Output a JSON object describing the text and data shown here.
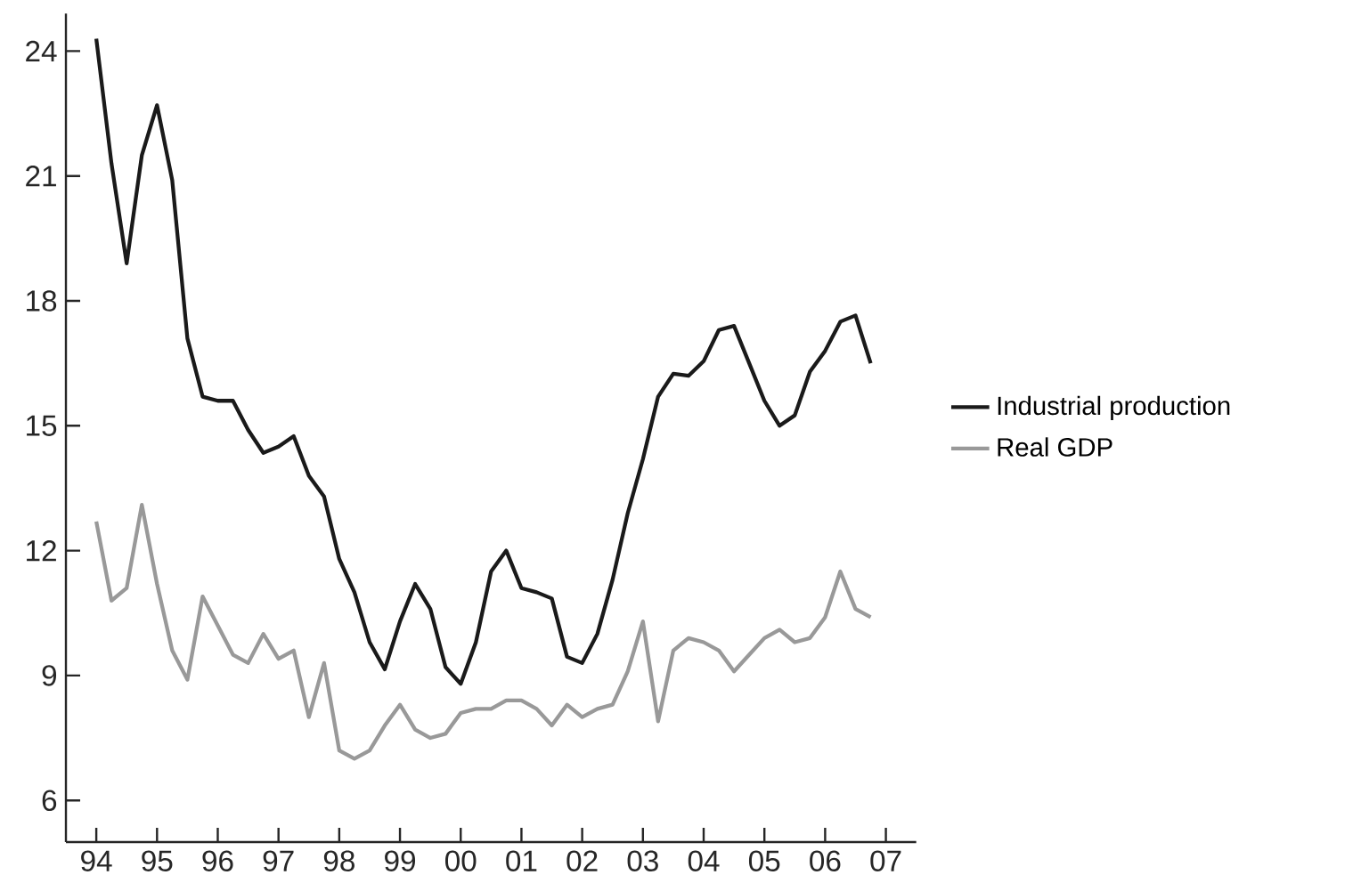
{
  "chart_data": {
    "type": "line",
    "x": [
      1994,
      1994.25,
      1994.5,
      1994.75,
      1995,
      1995.25,
      1995.5,
      1995.75,
      1996,
      1996.25,
      1996.5,
      1996.75,
      1997,
      1997.25,
      1997.5,
      1997.75,
      1998,
      1998.25,
      1998.5,
      1998.75,
      1999,
      1999.25,
      1999.5,
      1999.75,
      2000,
      2000.25,
      2000.5,
      2000.75,
      2001,
      2001.25,
      2001.5,
      2001.75,
      2002,
      2002.25,
      2002.5,
      2002.75,
      2003,
      2003.25,
      2003.5,
      2003.75,
      2004,
      2004.25,
      2004.5,
      2004.75,
      2005,
      2005.25,
      2005.5,
      2005.75,
      2006,
      2006.25,
      2006.5,
      2006.75
    ],
    "series": [
      {
        "name": "Industrial production",
        "color": "#1a1a1a",
        "values": [
          24.3,
          21.3,
          18.9,
          21.5,
          22.7,
          20.9,
          17.1,
          15.7,
          15.6,
          15.6,
          14.9,
          14.35,
          14.5,
          14.75,
          13.8,
          13.3,
          11.8,
          11.0,
          9.8,
          9.15,
          10.3,
          11.2,
          10.6,
          9.2,
          8.8,
          9.8,
          11.5,
          12.0,
          11.1,
          11.0,
          10.85,
          9.45,
          9.3,
          10.0,
          11.3,
          12.9,
          14.2,
          15.7,
          16.25,
          16.2,
          16.55,
          17.3,
          17.4,
          16.5,
          15.6,
          15.0,
          15.25,
          16.3,
          16.8,
          17.5,
          17.65,
          16.5
        ]
      },
      {
        "name": "Real GDP",
        "color": "#999999",
        "values": [
          12.7,
          10.8,
          11.1,
          13.1,
          11.2,
          9.6,
          8.9,
          10.9,
          10.2,
          9.5,
          9.3,
          10.0,
          9.4,
          9.6,
          8.0,
          9.3,
          7.2,
          7.0,
          7.2,
          7.8,
          8.3,
          7.7,
          7.5,
          7.6,
          8.1,
          8.2,
          8.2,
          8.4,
          8.4,
          8.2,
          7.8,
          8.3,
          8.0,
          8.2,
          8.3,
          9.1,
          10.3,
          7.9,
          9.6,
          9.9,
          9.8,
          9.6,
          9.1,
          9.5,
          9.9,
          10.1,
          9.8,
          9.9,
          10.4,
          11.5,
          10.6,
          10.4
        ]
      }
    ],
    "xlim": [
      1993.5,
      2007.5
    ],
    "xticks": [
      {
        "value": 1994,
        "label": "94"
      },
      {
        "value": 1995,
        "label": "95"
      },
      {
        "value": 1996,
        "label": "96"
      },
      {
        "value": 1997,
        "label": "97"
      },
      {
        "value": 1998,
        "label": "98"
      },
      {
        "value": 1999,
        "label": "99"
      },
      {
        "value": 2000,
        "label": "00"
      },
      {
        "value": 2001,
        "label": "01"
      },
      {
        "value": 2002,
        "label": "02"
      },
      {
        "value": 2003,
        "label": "03"
      },
      {
        "value": 2004,
        "label": "04"
      },
      {
        "value": 2005,
        "label": "05"
      },
      {
        "value": 2006,
        "label": "06"
      },
      {
        "value": 2007,
        "label": "07"
      }
    ],
    "ylim": [
      5,
      24.9
    ],
    "yticks": [
      6,
      9,
      12,
      15,
      18,
      21,
      24
    ],
    "legend": "right",
    "grid": false
  }
}
